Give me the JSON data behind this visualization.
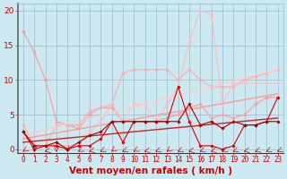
{
  "background_color": "#cce8f0",
  "grid_color": "#99bbcc",
  "xlabel": "Vent moyen/en rafales ( km/h )",
  "xlabel_color": "#cc0000",
  "xlabel_fontsize": 7.5,
  "ylim": [
    -0.5,
    21
  ],
  "xlim": [
    -0.5,
    23.5
  ],
  "yticks": [
    0,
    5,
    10,
    15,
    20
  ],
  "xtick_labels": [
    "0",
    "1",
    "2",
    "3",
    "4",
    "5",
    "6",
    "7",
    "8",
    "9",
    "10",
    "11",
    "12",
    "13",
    "14",
    "15",
    "16",
    "17",
    "18",
    "19",
    "20",
    "21",
    "22",
    "23"
  ],
  "tick_color": "#cc0000",
  "tick_fontsize": 5.5,
  "ytick_fontsize": 6.5,
  "lines": [
    {
      "x": [
        0,
        1,
        2,
        3,
        4,
        5,
        6,
        7,
        8,
        9,
        10,
        11,
        12,
        13,
        14,
        15,
        16,
        17,
        18,
        19,
        20,
        21,
        22,
        23
      ],
      "y": [
        17,
        14,
        10,
        4,
        3.5,
        3,
        5,
        6,
        6,
        4,
        4,
        4,
        4,
        4.5,
        5,
        6,
        6.5,
        4.5,
        5,
        4.5,
        5,
        6.5,
        7.5,
        7.5
      ],
      "color": "#ff9999",
      "lw": 0.8,
      "marker": "D",
      "ms": 1.8
    },
    {
      "x": [
        0,
        1,
        2,
        3,
        4,
        5,
        6,
        7,
        8,
        9,
        10,
        11,
        12,
        13,
        14,
        15,
        16,
        17,
        18,
        19,
        20,
        21,
        22,
        23
      ],
      "y": [
        3.5,
        0.5,
        0.5,
        3.5,
        3.5,
        3.5,
        5.5,
        6,
        6.5,
        11,
        11.5,
        11.5,
        11.5,
        11.5,
        10,
        11.5,
        10,
        9,
        9,
        9,
        10,
        10.5,
        11,
        11.5
      ],
      "color": "#ffaaaa",
      "lw": 0.8,
      "marker": "D",
      "ms": 1.8
    },
    {
      "x": [
        0,
        1,
        2,
        3,
        4,
        5,
        6,
        7,
        8,
        9,
        10,
        11,
        12,
        13,
        14,
        15,
        16,
        17,
        18,
        19,
        20,
        21,
        22,
        23
      ],
      "y": [
        2.5,
        0.5,
        0.5,
        0.5,
        0.5,
        0.5,
        2.5,
        4,
        6.5,
        4,
        6.5,
        6.5,
        4,
        6.5,
        9,
        15.5,
        20,
        19.5,
        6.5,
        9.5,
        9.5,
        9.5,
        9.5,
        9.5
      ],
      "color": "#ffbbbb",
      "lw": 0.8,
      "marker": "D",
      "ms": 1.8
    },
    {
      "x": [
        0,
        23
      ],
      "y": [
        1.0,
        4.5
      ],
      "color": "#cc2222",
      "lw": 1.0,
      "marker": null,
      "ms": 0
    },
    {
      "x": [
        0,
        23
      ],
      "y": [
        1.5,
        8.0
      ],
      "color": "#ff9999",
      "lw": 1.0,
      "marker": null,
      "ms": 0
    },
    {
      "x": [
        0,
        23
      ],
      "y": [
        2.0,
        11.5
      ],
      "color": "#ffcccc",
      "lw": 1.0,
      "marker": null,
      "ms": 0
    },
    {
      "x": [
        0,
        1,
        2,
        3,
        4,
        5,
        6,
        7,
        8,
        9,
        10,
        11,
        12,
        13,
        14,
        15,
        16,
        17,
        18,
        19,
        20,
        21,
        22,
        23
      ],
      "y": [
        2.5,
        0,
        0.5,
        0.5,
        0,
        0.5,
        0.5,
        1.5,
        4,
        1,
        4,
        4,
        4,
        4,
        9,
        4,
        0.5,
        0.5,
        0,
        0.5,
        3.5,
        3.5,
        4,
        7.5
      ],
      "color": "#dd0000",
      "lw": 0.8,
      "marker": "D",
      "ms": 1.8
    },
    {
      "x": [
        0,
        1,
        2,
        3,
        4,
        5,
        6,
        7,
        8,
        9,
        10,
        11,
        12,
        13,
        14,
        15,
        16,
        17,
        18,
        19,
        20,
        21,
        22,
        23
      ],
      "y": [
        2.5,
        0.5,
        0.5,
        1,
        0,
        1,
        2,
        2.5,
        4,
        4,
        4,
        4,
        4,
        4,
        4,
        6.5,
        3.5,
        4,
        3,
        4,
        3.5,
        3.5,
        4,
        4
      ],
      "color": "#aa0000",
      "lw": 0.8,
      "marker": "D",
      "ms": 1.8
    }
  ]
}
